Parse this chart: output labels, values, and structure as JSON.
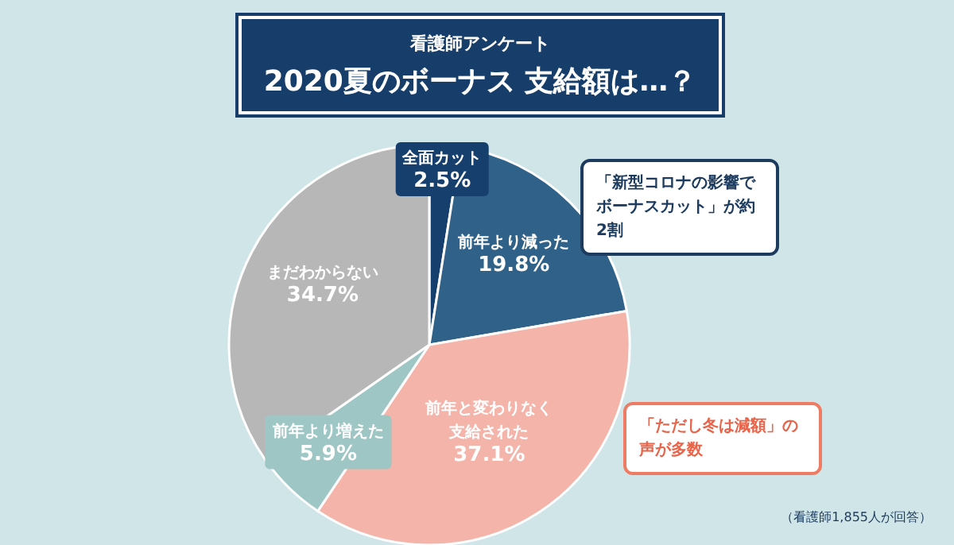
{
  "chart_data": {
    "type": "pie",
    "subtitle": "看護師アンケート",
    "title": "2020夏のボーナス 支給額は…？",
    "categories": [
      "全面カット",
      "前年より減った",
      "前年と変わりなく支給された",
      "前年より増えた",
      "まだわからない"
    ],
    "values": [
      2.5,
      19.8,
      37.1,
      5.9,
      34.7
    ],
    "value_labels": [
      "2.5%",
      "19.8%",
      "37.1%",
      "5.9%",
      "34.7%"
    ],
    "colors": [
      "#163f6e",
      "#2f6189",
      "#f4b4aa",
      "#9dc6c4",
      "#b7b7b7"
    ],
    "annotations": [
      "「新型コロナの影響でボーナスカット」が約2割",
      "「ただし冬は減額」の声が多数",
      "（看護師1,855人が回答）"
    ]
  }
}
